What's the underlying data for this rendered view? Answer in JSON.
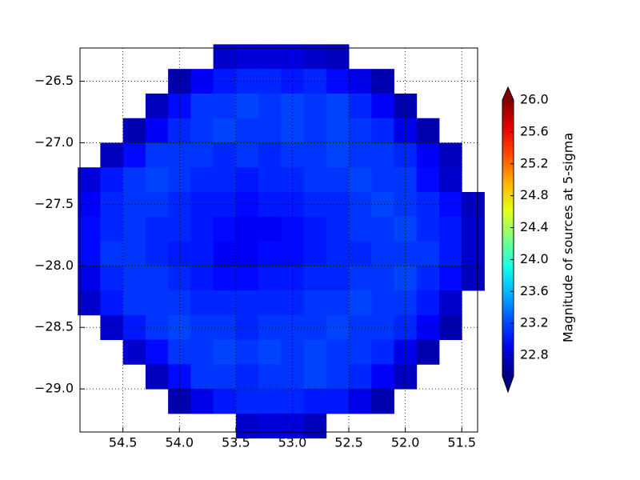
{
  "chart_data": {
    "type": "heatmap",
    "x": [
      54.8,
      54.6,
      54.4,
      54.2,
      54.0,
      53.8,
      53.6,
      53.4,
      53.2,
      53.0,
      52.8,
      52.6,
      52.4,
      52.2,
      52.0,
      51.8,
      51.6,
      51.4
    ],
    "y": [
      -26.3,
      -26.5,
      -26.7,
      -26.9,
      -27.1,
      -27.3,
      -27.5,
      -27.7,
      -27.9,
      -28.1,
      -28.3,
      -28.5,
      -28.7,
      -28.9,
      -29.1,
      -29.3
    ],
    "z": [
      [
        null,
        null,
        null,
        null,
        null,
        null,
        22.8,
        22.85,
        22.85,
        22.85,
        22.8,
        22.75,
        null,
        null,
        null,
        null,
        null,
        null
      ],
      [
        null,
        null,
        null,
        null,
        22.7,
        22.95,
        23.05,
        23.1,
        23.1,
        23.05,
        23.1,
        23.0,
        22.9,
        22.7,
        null,
        null,
        null,
        null
      ],
      [
        null,
        null,
        null,
        22.75,
        23.0,
        23.15,
        23.15,
        23.2,
        23.15,
        23.2,
        23.15,
        23.2,
        23.1,
        22.95,
        22.7,
        null,
        null,
        null
      ],
      [
        null,
        null,
        22.7,
        22.95,
        23.1,
        23.15,
        23.2,
        23.15,
        23.15,
        23.2,
        23.15,
        23.2,
        23.15,
        23.1,
        22.9,
        22.7,
        null,
        null
      ],
      [
        null,
        22.75,
        23.0,
        23.15,
        23.15,
        23.15,
        23.1,
        23.15,
        23.1,
        23.15,
        23.15,
        23.2,
        23.15,
        23.15,
        23.1,
        22.95,
        22.75,
        null
      ],
      [
        22.85,
        23.05,
        23.15,
        23.2,
        23.15,
        23.1,
        23.1,
        23.05,
        23.1,
        23.1,
        23.15,
        23.15,
        23.2,
        23.15,
        23.15,
        23.0,
        22.8,
        null
      ],
      [
        22.95,
        23.1,
        23.15,
        23.15,
        23.1,
        23.05,
        23.05,
        23.0,
        23.05,
        23.05,
        23.1,
        23.1,
        23.15,
        23.2,
        23.15,
        23.1,
        23.0,
        22.75
      ],
      [
        23.0,
        23.1,
        23.15,
        23.1,
        23.1,
        23.05,
        23.0,
        22.95,
        22.95,
        23.0,
        23.05,
        23.1,
        23.15,
        23.15,
        23.2,
        23.1,
        23.05,
        22.8
      ],
      [
        23.0,
        23.15,
        23.15,
        23.1,
        23.05,
        23.05,
        22.95,
        22.95,
        23.0,
        23.0,
        23.05,
        23.1,
        23.1,
        23.15,
        23.15,
        23.15,
        23.05,
        22.8
      ],
      [
        22.9,
        23.1,
        23.15,
        23.15,
        23.1,
        23.05,
        23.0,
        23.0,
        23.05,
        23.05,
        23.1,
        23.1,
        23.15,
        23.15,
        23.2,
        23.1,
        23.0,
        22.75
      ],
      [
        22.8,
        23.05,
        23.15,
        23.15,
        23.15,
        23.1,
        23.1,
        23.1,
        23.1,
        23.1,
        23.15,
        23.15,
        23.2,
        23.15,
        23.15,
        23.05,
        22.8,
        null
      ],
      [
        null,
        22.8,
        23.05,
        23.15,
        23.2,
        23.15,
        23.15,
        23.1,
        23.15,
        23.15,
        23.15,
        23.2,
        23.15,
        23.15,
        23.1,
        22.95,
        22.7,
        null
      ],
      [
        null,
        null,
        22.8,
        23.0,
        23.15,
        23.15,
        23.2,
        23.15,
        23.2,
        23.15,
        23.2,
        23.15,
        23.15,
        23.1,
        22.9,
        22.7,
        null,
        null
      ],
      [
        null,
        null,
        null,
        22.75,
        23.0,
        23.15,
        23.15,
        23.1,
        23.15,
        23.15,
        23.2,
        23.15,
        23.1,
        22.95,
        22.75,
        null,
        null,
        null
      ],
      [
        null,
        null,
        null,
        null,
        22.7,
        22.9,
        23.05,
        23.1,
        23.1,
        23.1,
        23.05,
        23.05,
        22.9,
        22.7,
        null,
        null,
        null,
        null
      ],
      [
        null,
        null,
        null,
        null,
        null,
        null,
        null,
        22.8,
        22.85,
        22.85,
        22.75,
        null,
        null,
        null,
        null,
        null,
        null,
        null
      ]
    ],
    "xlim": [
      54.88,
      51.36
    ],
    "ylim": [
      -29.35,
      -26.23
    ],
    "xticks": [
      54.5,
      {
        "value": 54,
        "label": "54.0"
      },
      53.5,
      {
        "value": 53,
        "label": "53.0"
      },
      52.5,
      {
        "value": 52,
        "label": "52.0"
      },
      51.5
    ],
    "yticks": [
      {
        "value": -26.5,
        "label": "−26.5"
      },
      {
        "value": -27,
        "label": "−27.0"
      },
      {
        "value": -27.5,
        "label": "−27.5"
      },
      {
        "value": -28,
        "label": "−28.0"
      },
      {
        "value": -28.5,
        "label": "−28.5"
      },
      {
        "value": -29,
        "label": "−29.0"
      }
    ],
    "grid": true,
    "colorbar": {
      "label": "Magnitude of sources at 5-sigma",
      "colormap": "jet",
      "extend": "both",
      "clim": [
        22.54,
        26.0
      ],
      "ticks": [
        22.8,
        23.2,
        23.6,
        {
          "value": 24,
          "label": "24.0"
        },
        24.4,
        24.8,
        25.2,
        25.6,
        {
          "value": 26,
          "label": "26.0"
        }
      ]
    }
  }
}
